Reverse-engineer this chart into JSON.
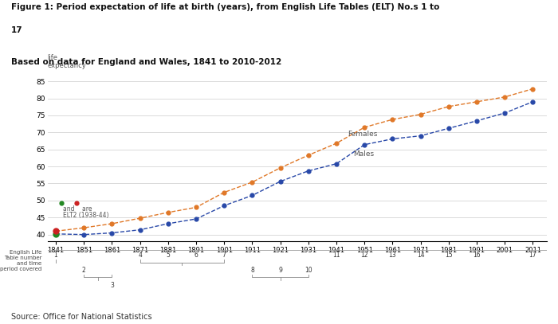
{
  "title_line1": "Figure 1: Period expectation of life at birth (years), from English Life Tables (ELT) No.s 1 to",
  "title_line2": "17",
  "subtitle": "Based on data for England and Wales, 1841 to 2010-2012",
  "source": "Source: Office for National Statistics",
  "years": [
    1841,
    1851,
    1861,
    1871,
    1881,
    1891,
    1901,
    1911,
    1921,
    1931,
    1941,
    1951,
    1961,
    1971,
    1981,
    1991,
    2001,
    2011
  ],
  "females": [
    41.0,
    42.0,
    43.2,
    44.8,
    46.5,
    48.0,
    52.4,
    55.4,
    59.6,
    63.3,
    66.8,
    71.5,
    73.8,
    75.3,
    77.6,
    79.0,
    80.4,
    82.8
  ],
  "males": [
    40.2,
    40.0,
    40.5,
    41.4,
    43.2,
    44.6,
    48.5,
    51.5,
    55.6,
    58.7,
    60.8,
    66.4,
    68.1,
    69.0,
    71.2,
    73.4,
    75.7,
    79.0
  ],
  "female_color": "#E07828",
  "male_color": "#2848A8",
  "ylim": [
    38,
    87
  ],
  "yticks": [
    40,
    45,
    50,
    55,
    60,
    65,
    70,
    75,
    80,
    85
  ],
  "background_color": "#FFFFFF",
  "grid_color": "#CCCCCC"
}
